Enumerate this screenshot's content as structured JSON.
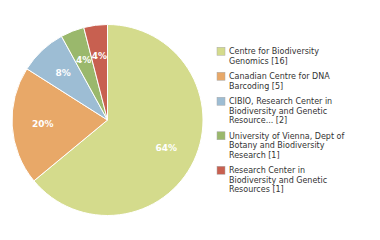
{
  "chart_data": {
    "type": "pie",
    "categories": [
      "Centre for Biodiversity\nGenomics [16]",
      "Canadian Centre for DNA\nBarcoding [5]",
      "CIBIO, Research Center in\nBiodiversity and Genetic\nResource... [2]",
      "University of Vienna, Dept of\nBotany and Biodiversity\nResearch [1]",
      "Research Center in\nBiodiversity and Genetic\nResources [1]"
    ],
    "values": [
      64,
      20,
      8,
      4,
      4
    ],
    "value_labels": [
      "64%",
      "20%",
      "8%",
      "4%",
      "4%"
    ],
    "colors": [
      "#d4db8c",
      "#e8a868",
      "#9dbdd4",
      "#9ab86c",
      "#c86050"
    ],
    "data_labels": true,
    "legend": "right"
  }
}
